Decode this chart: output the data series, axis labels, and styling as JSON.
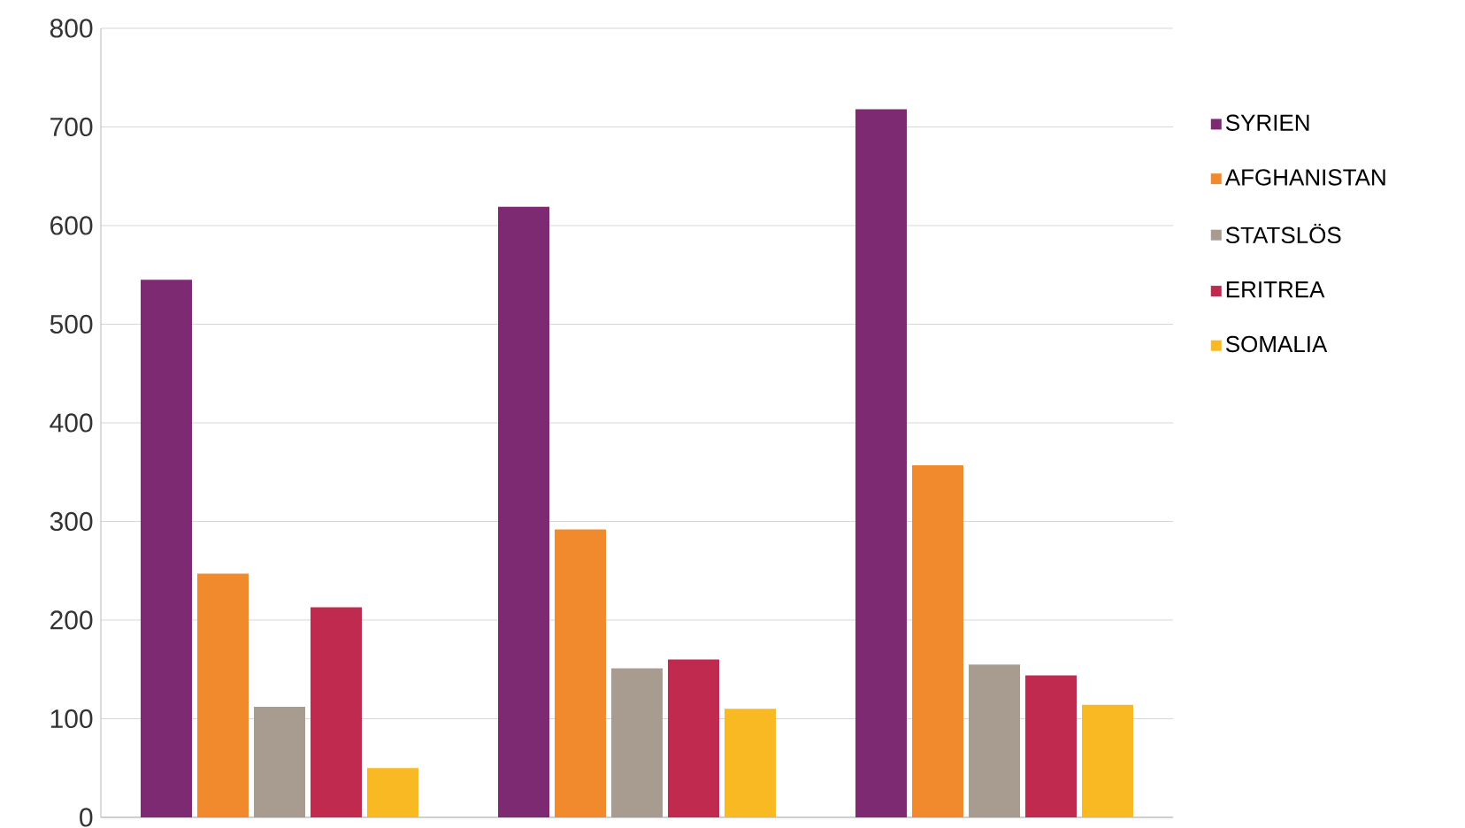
{
  "chart_data": {
    "type": "bar",
    "categories": [
      null,
      null,
      null
    ],
    "series": [
      {
        "name": "SYRIEN",
        "color": "#7d2a72",
        "values": [
          545,
          619,
          718
        ]
      },
      {
        "name": "AFGHANISTAN",
        "color": "#f08a2c",
        "values": [
          247,
          292,
          357
        ]
      },
      {
        "name": "STATSLÖS",
        "color": "#a89b90",
        "values": [
          112,
          151,
          155
        ]
      },
      {
        "name": "ERITREA",
        "color": "#c02a4e",
        "values": [
          213,
          160,
          144
        ]
      },
      {
        "name": "SOMALIA",
        "color": "#f8b922",
        "values": [
          50,
          110,
          114
        ]
      }
    ],
    "ylim": [
      0,
      800
    ],
    "yticks": [
      0,
      100,
      200,
      300,
      400,
      500,
      600,
      700,
      800
    ],
    "grid": "y",
    "legend": "right"
  }
}
